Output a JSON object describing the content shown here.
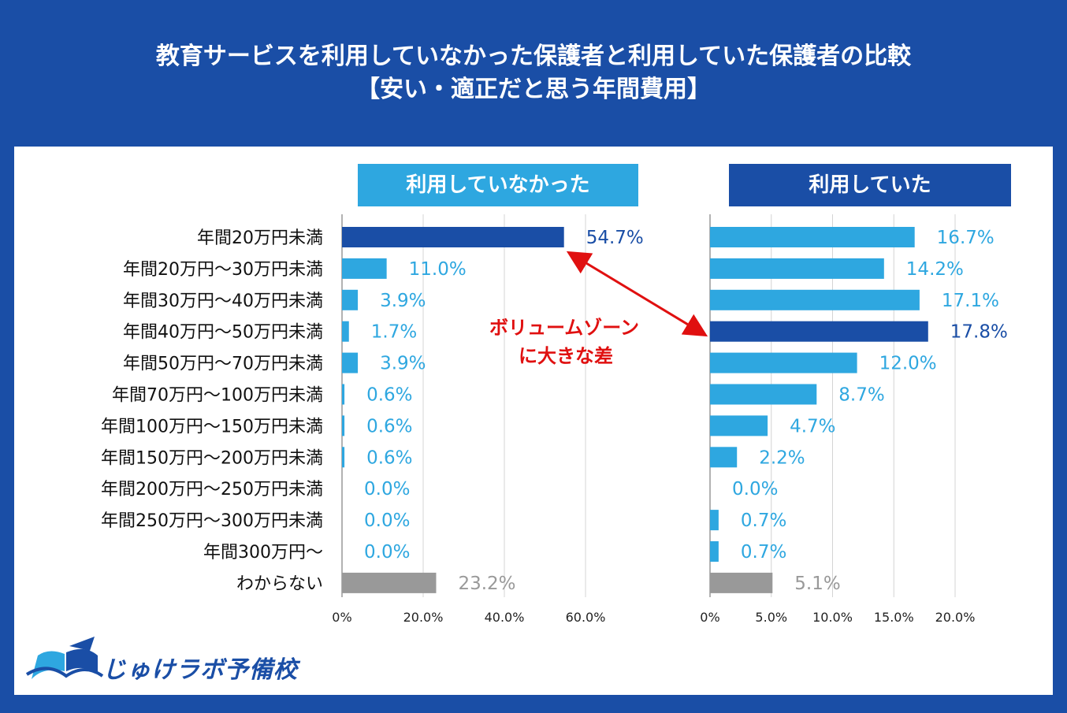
{
  "title": {
    "line1": "教育サービスを利用していなかった保護者と利用していた保護者の比較",
    "line2": "【安い・適正だと思う年間費用】"
  },
  "logo": {
    "text": "じゅけラボ予備校",
    "icon": "open-book-icon"
  },
  "annotation": {
    "line1": "ボリュームゾーン",
    "line2": "に大きな差"
  },
  "colors": {
    "light_bar": "#2ea7e0",
    "dark_bar": "#1a4ea6",
    "gray_bar": "#999999",
    "light_label": "#2ea7e0",
    "dark_label": "#1a4ea6",
    "gray_label": "#999999",
    "arrow": "#e01010"
  },
  "chart_data": [
    {
      "type": "bar",
      "orientation": "horizontal",
      "title": "利用していなかった",
      "categories": [
        "年間20万円未満",
        "年間20万円～30万円未満",
        "年間30万円～40万円未満",
        "年間40万円～50万円未満",
        "年間50万円～70万円未満",
        "年間70万円～100万円未満",
        "年間100万円～150万円未満",
        "年間150万円～200万円未満",
        "年間200万円～250万円未満",
        "年間250万円～300万円未満",
        "年間300万円～",
        "わからない"
      ],
      "values": [
        54.7,
        11.0,
        3.9,
        1.7,
        3.9,
        0.6,
        0.6,
        0.6,
        0.0,
        0.0,
        0.0,
        23.2
      ],
      "value_labels": [
        "54.7%",
        "11.0%",
        "3.9%",
        "1.7%",
        "3.9%",
        "0.6%",
        "0.6%",
        "0.6%",
        "0.0%",
        "0.0%",
        "0.0%",
        "23.2%"
      ],
      "highlight_index": 0,
      "xlim": [
        0,
        60
      ],
      "xticks": [
        0,
        20,
        40,
        60
      ],
      "xtick_labels": [
        "0%",
        "20.0%",
        "40.0%",
        "60.0%"
      ],
      "grid": true,
      "unit": "%"
    },
    {
      "type": "bar",
      "orientation": "horizontal",
      "title": "利用していた",
      "categories": [
        "年間20万円未満",
        "年間20万円～30万円未満",
        "年間30万円～40万円未満",
        "年間40万円～50万円未満",
        "年間50万円～70万円未満",
        "年間70万円～100万円未満",
        "年間100万円～150万円未満",
        "年間150万円～200万円未満",
        "年間200万円～250万円未満",
        "年間250万円～300万円未満",
        "年間300万円～",
        "わからない"
      ],
      "values": [
        16.7,
        14.2,
        17.1,
        17.8,
        12.0,
        8.7,
        4.7,
        2.2,
        0.0,
        0.7,
        0.7,
        5.1
      ],
      "value_labels": [
        "16.7%",
        "14.2%",
        "17.1%",
        "17.8%",
        "12.0%",
        "8.7%",
        "4.7%",
        "2.2%",
        "0.0%",
        "0.7%",
        "0.7%",
        "5.1%"
      ],
      "highlight_index": 3,
      "xlim": [
        0,
        20
      ],
      "xticks": [
        0,
        5,
        10,
        15,
        20
      ],
      "xtick_labels": [
        "0%",
        "5.0%",
        "10.0%",
        "15.0%",
        "20.0%"
      ],
      "grid": true,
      "unit": "%"
    }
  ]
}
